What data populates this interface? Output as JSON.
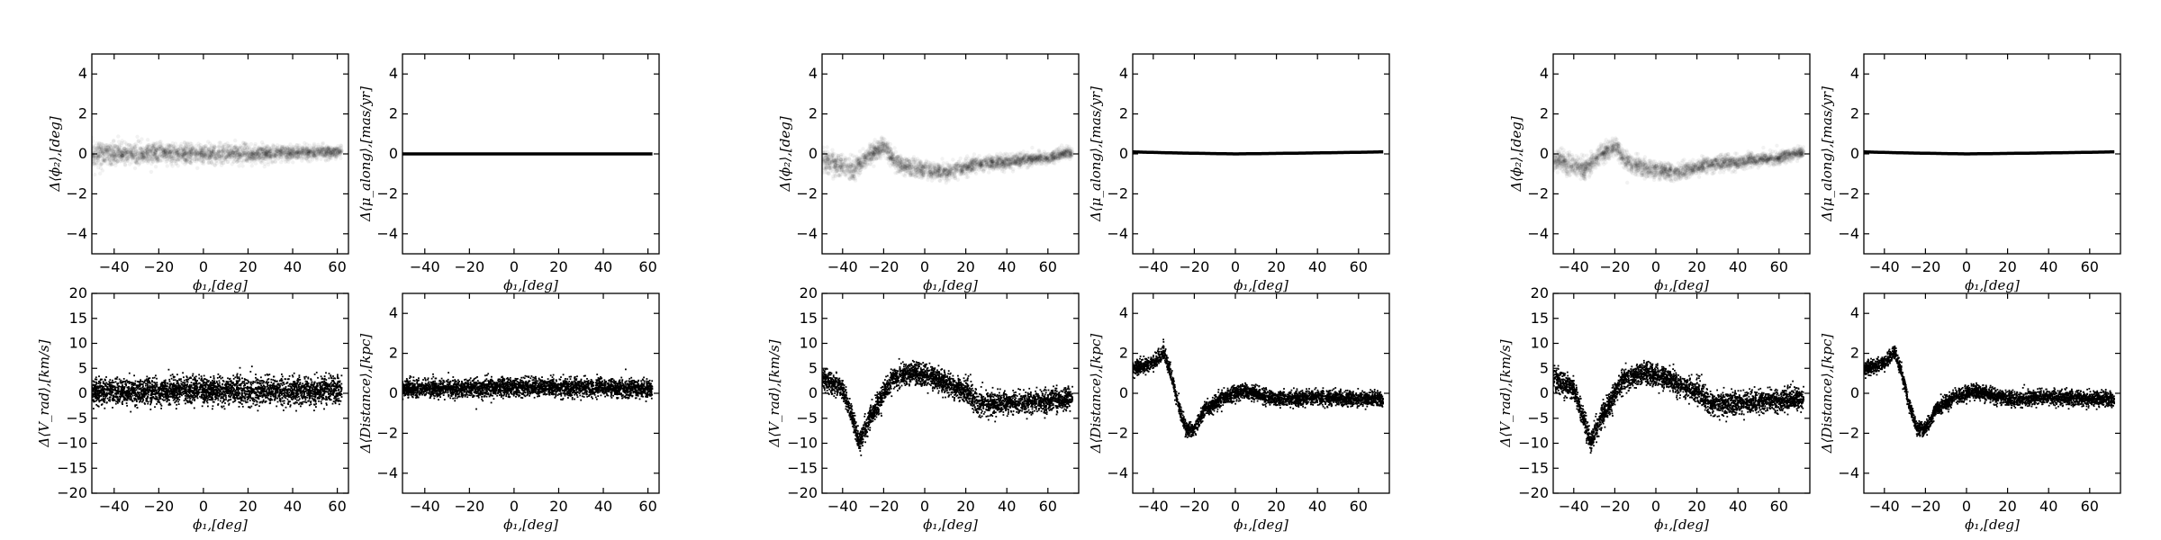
{
  "chart_data": [
    {
      "group": 1,
      "type": "scatter",
      "panels": [
        {
          "id": "dphi2",
          "type": "scatter",
          "style": "density",
          "xlabel": "ϕ₁,[deg]",
          "ylabel": "Δ⟨ϕ₂⟩,[deg]",
          "xlim": [
            -50,
            65
          ],
          "ylim": [
            -5,
            5
          ],
          "xticks": [
            -40,
            -20,
            0,
            20,
            40,
            60
          ],
          "yticks": [
            -4,
            -2,
            0,
            2,
            4
          ],
          "spread": 0.25,
          "trend": [
            [
              -50,
              0
            ],
            [
              0,
              0
            ],
            [
              20,
              0
            ],
            [
              40,
              0.05
            ],
            [
              62,
              0.1
            ]
          ],
          "x_end": 62
        },
        {
          "id": "dmu",
          "type": "scatter",
          "style": "line",
          "xlabel": "ϕ₁,[deg]",
          "ylabel": "Δ⟨μ_along⟩,[mas/yr]",
          "xlim": [
            -50,
            65
          ],
          "ylim": [
            -5,
            5
          ],
          "xticks": [
            -40,
            -20,
            0,
            20,
            40,
            60
          ],
          "yticks": [
            -4,
            -2,
            0,
            2,
            4
          ],
          "spread": 0.03,
          "trend": [
            [
              -50,
              0
            ],
            [
              62,
              0
            ]
          ],
          "x_end": 62
        },
        {
          "id": "dvrad",
          "type": "scatter",
          "style": "points",
          "xlabel": "ϕ₁,[deg]",
          "ylabel": "Δ⟨V_rad⟩,[km/s]",
          "xlim": [
            -50,
            65
          ],
          "ylim": [
            -20,
            20
          ],
          "xticks": [
            -40,
            -20,
            0,
            20,
            40,
            60
          ],
          "yticks": [
            -20,
            -15,
            -10,
            -5,
            0,
            5,
            10,
            15,
            20
          ],
          "spread": 1.3,
          "trend": [
            [
              -50,
              0.3
            ],
            [
              0,
              0.5
            ],
            [
              40,
              0.4
            ],
            [
              62,
              0.8
            ]
          ],
          "x_end": 62
        },
        {
          "id": "ddist",
          "type": "scatter",
          "style": "points",
          "xlabel": "ϕ₁,[deg]",
          "ylabel": "Δ⟨Distance⟩,[kpc]",
          "xlim": [
            -50,
            65
          ],
          "ylim": [
            -5,
            5
          ],
          "xticks": [
            -40,
            -20,
            0,
            20,
            40,
            60
          ],
          "yticks": [
            -4,
            -2,
            0,
            2,
            4
          ],
          "spread": 0.22,
          "trend": [
            [
              -50,
              0.2
            ],
            [
              0,
              0.3
            ],
            [
              40,
              0.3
            ],
            [
              62,
              0.2
            ]
          ],
          "x_end": 62
        }
      ]
    },
    {
      "group": 2,
      "type": "scatter",
      "panels": [
        {
          "id": "dphi2",
          "type": "scatter",
          "style": "density",
          "xlabel": "ϕ₁,[deg]",
          "ylabel": "Δ⟨ϕ₂⟩,[deg]",
          "xlim": [
            -50,
            75
          ],
          "ylim": [
            -5,
            5
          ],
          "xticks": [
            -40,
            -20,
            0,
            20,
            40,
            60
          ],
          "yticks": [
            -4,
            -2,
            0,
            2,
            4
          ],
          "spread": 0.22,
          "trend": [
            [
              -50,
              -0.3
            ],
            [
              -40,
              -0.6
            ],
            [
              -35,
              -0.8
            ],
            [
              -30,
              -0.3
            ],
            [
              -20,
              0.4
            ],
            [
              -15,
              -0.3
            ],
            [
              -10,
              -0.6
            ],
            [
              0,
              -0.8
            ],
            [
              10,
              -0.9
            ],
            [
              20,
              -0.7
            ],
            [
              25,
              -0.5
            ],
            [
              40,
              -0.4
            ],
            [
              60,
              -0.2
            ],
            [
              72,
              0.1
            ]
          ],
          "x_end": 72
        },
        {
          "id": "dmu",
          "type": "scatter",
          "style": "line",
          "xlabel": "ϕ₁,[deg]",
          "ylabel": "Δ⟨μ_along⟩,[mas/yr]",
          "xlim": [
            -50,
            75
          ],
          "ylim": [
            -5,
            5
          ],
          "xticks": [
            -40,
            -20,
            0,
            20,
            40,
            60
          ],
          "yticks": [
            -4,
            -2,
            0,
            2,
            4
          ],
          "spread": 0.04,
          "trend": [
            [
              -50,
              0.1
            ],
            [
              -30,
              0.05
            ],
            [
              0,
              0
            ],
            [
              40,
              0.05
            ],
            [
              72,
              0.1
            ]
          ],
          "x_end": 72
        },
        {
          "id": "dvrad",
          "type": "scatter",
          "style": "points",
          "xlabel": "ϕ₁,[deg]",
          "ylabel": "Δ⟨V_rad⟩,[km/s]",
          "xlim": [
            -50,
            75
          ],
          "ylim": [
            -20,
            20
          ],
          "xticks": [
            -40,
            -20,
            0,
            20,
            40,
            60
          ],
          "yticks": [
            -20,
            -15,
            -10,
            -5,
            0,
            5,
            10,
            15,
            20
          ],
          "spread": 1.1,
          "trend": [
            [
              -50,
              3
            ],
            [
              -40,
              1
            ],
            [
              -35,
              -5
            ],
            [
              -32,
              -10
            ],
            [
              -28,
              -6
            ],
            [
              -20,
              0
            ],
            [
              -15,
              3
            ],
            [
              -5,
              4
            ],
            [
              5,
              3
            ],
            [
              15,
              1
            ],
            [
              22,
              0
            ],
            [
              25,
              -2
            ],
            [
              40,
              -2
            ],
            [
              60,
              -1.5
            ],
            [
              72,
              -1
            ]
          ],
          "x_end": 72
        },
        {
          "id": "ddist",
          "type": "scatter",
          "style": "points",
          "xlabel": "ϕ₁,[deg]",
          "ylabel": "Δ⟨Distance⟩,[kpc]",
          "xlim": [
            -50,
            75
          ],
          "ylim": [
            -5,
            5
          ],
          "xticks": [
            -40,
            -20,
            0,
            20,
            40,
            60
          ],
          "yticks": [
            -4,
            -2,
            0,
            2,
            4
          ],
          "spread": 0.18,
          "trend": [
            [
              -50,
              1.2
            ],
            [
              -40,
              1.5
            ],
            [
              -35,
              2.1
            ],
            [
              -32,
              1.2
            ],
            [
              -28,
              -0.5
            ],
            [
              -24,
              -1.8
            ],
            [
              -20,
              -1.8
            ],
            [
              -15,
              -0.8
            ],
            [
              -5,
              -0.2
            ],
            [
              5,
              0.1
            ],
            [
              20,
              -0.3
            ],
            [
              40,
              -0.2
            ],
            [
              72,
              -0.3
            ]
          ],
          "x_end": 72
        }
      ]
    },
    {
      "group": 3,
      "type": "scatter",
      "panels": [
        {
          "id": "dphi2",
          "type": "scatter",
          "style": "density",
          "xlabel": "ϕ₁,[deg]",
          "ylabel": "Δ⟨ϕ₂⟩,[deg]",
          "xlim": [
            -50,
            75
          ],
          "ylim": [
            -5,
            5
          ],
          "xticks": [
            -40,
            -20,
            0,
            20,
            40,
            60
          ],
          "yticks": [
            -4,
            -2,
            0,
            2,
            4
          ],
          "spread": 0.22,
          "trend": [
            [
              -50,
              -0.3
            ],
            [
              -40,
              -0.6
            ],
            [
              -35,
              -0.8
            ],
            [
              -30,
              -0.3
            ],
            [
              -20,
              0.4
            ],
            [
              -15,
              -0.3
            ],
            [
              -10,
              -0.6
            ],
            [
              0,
              -0.8
            ],
            [
              10,
              -0.9
            ],
            [
              20,
              -0.7
            ],
            [
              25,
              -0.5
            ],
            [
              40,
              -0.4
            ],
            [
              60,
              -0.2
            ],
            [
              72,
              0.1
            ]
          ],
          "x_end": 72
        },
        {
          "id": "dmu",
          "type": "scatter",
          "style": "line",
          "xlabel": "ϕ₁,[deg]",
          "ylabel": "Δ⟨μ_along⟩,[mas/yr]",
          "xlim": [
            -50,
            75
          ],
          "ylim": [
            -5,
            5
          ],
          "xticks": [
            -40,
            -20,
            0,
            20,
            40,
            60
          ],
          "yticks": [
            -4,
            -2,
            0,
            2,
            4
          ],
          "spread": 0.04,
          "trend": [
            [
              -50,
              0.1
            ],
            [
              -30,
              0.05
            ],
            [
              0,
              0
            ],
            [
              40,
              0.05
            ],
            [
              72,
              0.1
            ]
          ],
          "x_end": 72
        },
        {
          "id": "dvrad",
          "type": "scatter",
          "style": "points",
          "xlabel": "ϕ₁,[deg]",
          "ylabel": "Δ⟨V_rad⟩,[km/s]",
          "xlim": [
            -50,
            75
          ],
          "ylim": [
            -20,
            20
          ],
          "xticks": [
            -40,
            -20,
            0,
            20,
            40,
            60
          ],
          "yticks": [
            -20,
            -15,
            -10,
            -5,
            0,
            5,
            10,
            15,
            20
          ],
          "spread": 1.1,
          "trend": [
            [
              -50,
              3
            ],
            [
              -40,
              1
            ],
            [
              -35,
              -5
            ],
            [
              -32,
              -10
            ],
            [
              -28,
              -6
            ],
            [
              -20,
              0
            ],
            [
              -15,
              3
            ],
            [
              -5,
              4
            ],
            [
              5,
              3
            ],
            [
              15,
              1
            ],
            [
              22,
              0
            ],
            [
              25,
              -2
            ],
            [
              40,
              -2
            ],
            [
              60,
              -1.5
            ],
            [
              72,
              -1
            ]
          ],
          "x_end": 72
        },
        {
          "id": "ddist",
          "type": "scatter",
          "style": "points",
          "xlabel": "ϕ₁,[deg]",
          "ylabel": "Δ⟨Distance⟩,[kpc]",
          "xlim": [
            -50,
            75
          ],
          "ylim": [
            -5,
            5
          ],
          "xticks": [
            -40,
            -20,
            0,
            20,
            40,
            60
          ],
          "yticks": [
            -4,
            -2,
            0,
            2,
            4
          ],
          "spread": 0.18,
          "trend": [
            [
              -50,
              1.2
            ],
            [
              -40,
              1.5
            ],
            [
              -35,
              2.1
            ],
            [
              -32,
              1.2
            ],
            [
              -28,
              -0.5
            ],
            [
              -24,
              -1.8
            ],
            [
              -20,
              -1.8
            ],
            [
              -15,
              -0.8
            ],
            [
              -5,
              -0.2
            ],
            [
              5,
              0.1
            ],
            [
              20,
              -0.3
            ],
            [
              40,
              -0.2
            ],
            [
              72,
              -0.3
            ]
          ],
          "x_end": 72
        }
      ]
    }
  ]
}
